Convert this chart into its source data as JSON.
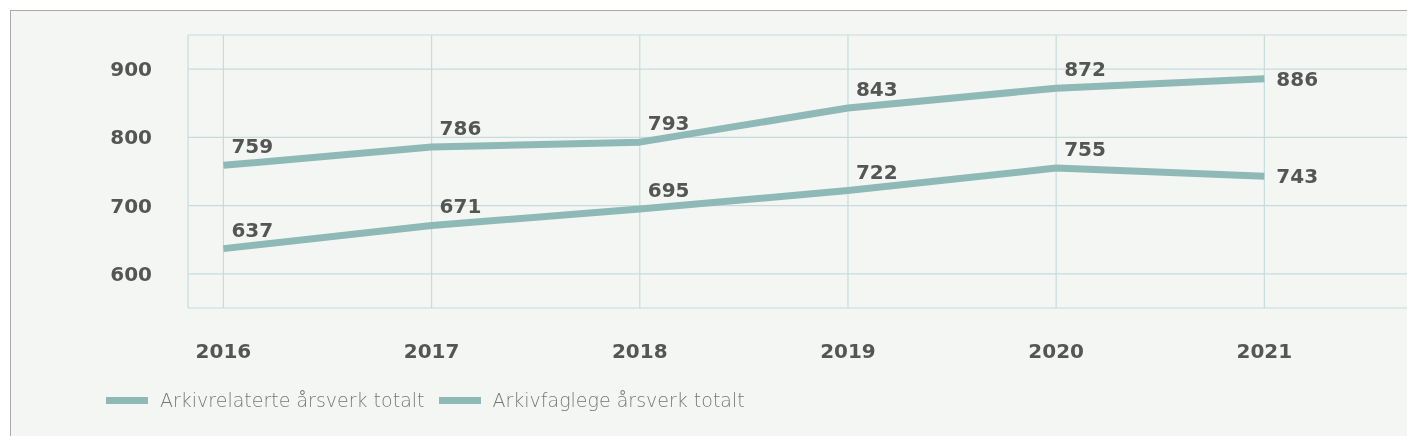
{
  "chart_data": {
    "type": "line",
    "categories": [
      "2016",
      "2017",
      "2018",
      "2019",
      "2020",
      "2021"
    ],
    "series": [
      {
        "name": "Arkivrelaterte årsverk totalt",
        "color": "#8fb9b7",
        "values": [
          759,
          786,
          793,
          843,
          872,
          886
        ]
      },
      {
        "name": "Arkivfaglege årsverk totalt",
        "color": "#8fb9b7",
        "values": [
          637,
          671,
          695,
          722,
          755,
          743
        ]
      }
    ],
    "ylim": [
      550,
      950
    ],
    "yticks": [
      600,
      700,
      800,
      900
    ],
    "grid": true,
    "data_labels": true,
    "legend": "bottom left",
    "marker": "none",
    "line_style": "solid"
  }
}
